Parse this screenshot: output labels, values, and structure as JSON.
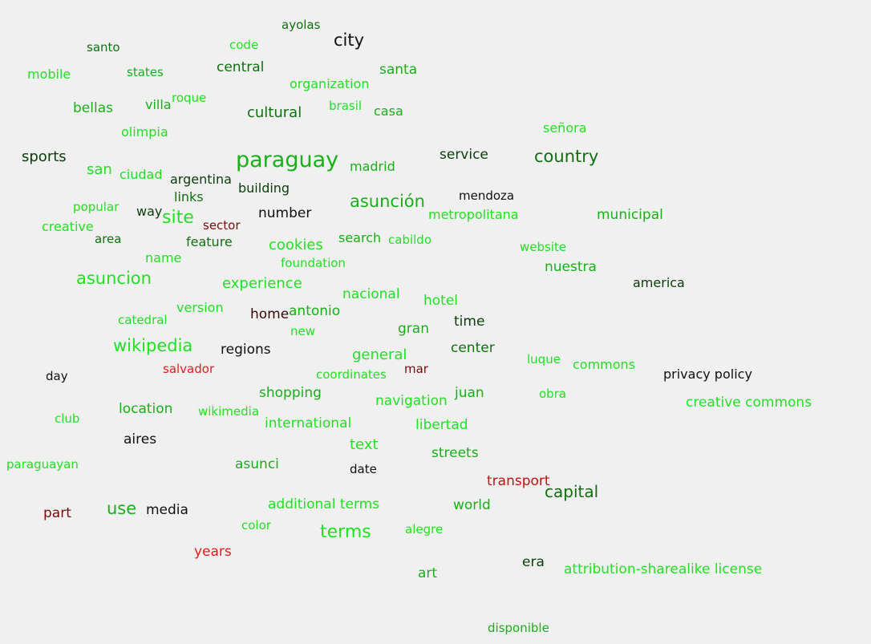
{
  "colors": {
    "background": "#f0f0f0",
    "bright_green": "#22e022",
    "green": "#17b017",
    "dark_green": "#0f700f",
    "very_dark_green": "#0a3d0a",
    "black": "#101010",
    "dark_red": "#7a0a0a",
    "red": "#c80e0e",
    "bright_red": "#e81b1b"
  },
  "words": [
    {
      "text": "ayolas"
    },
    {
      "text": "city"
    },
    {
      "text": "santo"
    },
    {
      "text": "code"
    },
    {
      "text": "mobile"
    },
    {
      "text": "states"
    },
    {
      "text": "central"
    },
    {
      "text": "santa"
    },
    {
      "text": "organization"
    },
    {
      "text": "roque"
    },
    {
      "text": "bellas"
    },
    {
      "text": "villa"
    },
    {
      "text": "brasil"
    },
    {
      "text": "cultural"
    },
    {
      "text": "casa"
    },
    {
      "text": "señora"
    },
    {
      "text": "olimpia"
    },
    {
      "text": "sports"
    },
    {
      "text": "paraguay"
    },
    {
      "text": "service"
    },
    {
      "text": "country"
    },
    {
      "text": "san"
    },
    {
      "text": "ciudad"
    },
    {
      "text": "madrid"
    },
    {
      "text": "argentina"
    },
    {
      "text": "building"
    },
    {
      "text": "links"
    },
    {
      "text": "asunción"
    },
    {
      "text": "mendoza"
    },
    {
      "text": "popular"
    },
    {
      "text": "way"
    },
    {
      "text": "site"
    },
    {
      "text": "number"
    },
    {
      "text": "metropolitana"
    },
    {
      "text": "municipal"
    },
    {
      "text": "creative"
    },
    {
      "text": "sector"
    },
    {
      "text": "area"
    },
    {
      "text": "feature"
    },
    {
      "text": "search"
    },
    {
      "text": "cabildo"
    },
    {
      "text": "cookies"
    },
    {
      "text": "website"
    },
    {
      "text": "name"
    },
    {
      "text": "foundation"
    },
    {
      "text": "nuestra"
    },
    {
      "text": "asuncion"
    },
    {
      "text": "experience"
    },
    {
      "text": "america"
    },
    {
      "text": "nacional"
    },
    {
      "text": "hotel"
    },
    {
      "text": "version"
    },
    {
      "text": "home"
    },
    {
      "text": "antonio"
    },
    {
      "text": "catedral"
    },
    {
      "text": "time"
    },
    {
      "text": "new"
    },
    {
      "text": "gran"
    },
    {
      "text": "wikipedia"
    },
    {
      "text": "regions"
    },
    {
      "text": "center"
    },
    {
      "text": "general"
    },
    {
      "text": "luque"
    },
    {
      "text": "commons"
    },
    {
      "text": "day"
    },
    {
      "text": "salvador"
    },
    {
      "text": "mar"
    },
    {
      "text": "privacy policy"
    },
    {
      "text": "coordinates"
    },
    {
      "text": "shopping"
    },
    {
      "text": "juan"
    },
    {
      "text": "obra"
    },
    {
      "text": "navigation"
    },
    {
      "text": "creative commons"
    },
    {
      "text": "location"
    },
    {
      "text": "club"
    },
    {
      "text": "wikimedia"
    },
    {
      "text": "international"
    },
    {
      "text": "libertad"
    },
    {
      "text": "aires"
    },
    {
      "text": "text"
    },
    {
      "text": "streets"
    },
    {
      "text": "paraguayan"
    },
    {
      "text": "asunci"
    },
    {
      "text": "date"
    },
    {
      "text": "transport"
    },
    {
      "text": "capital"
    },
    {
      "text": "use"
    },
    {
      "text": "part"
    },
    {
      "text": "media"
    },
    {
      "text": "additional terms"
    },
    {
      "text": "world"
    },
    {
      "text": "color"
    },
    {
      "text": "terms"
    },
    {
      "text": "alegre"
    },
    {
      "text": "years"
    },
    {
      "text": "era"
    },
    {
      "text": "attribution-sharealike license"
    },
    {
      "text": "art"
    },
    {
      "text": "disponible"
    }
  ]
}
